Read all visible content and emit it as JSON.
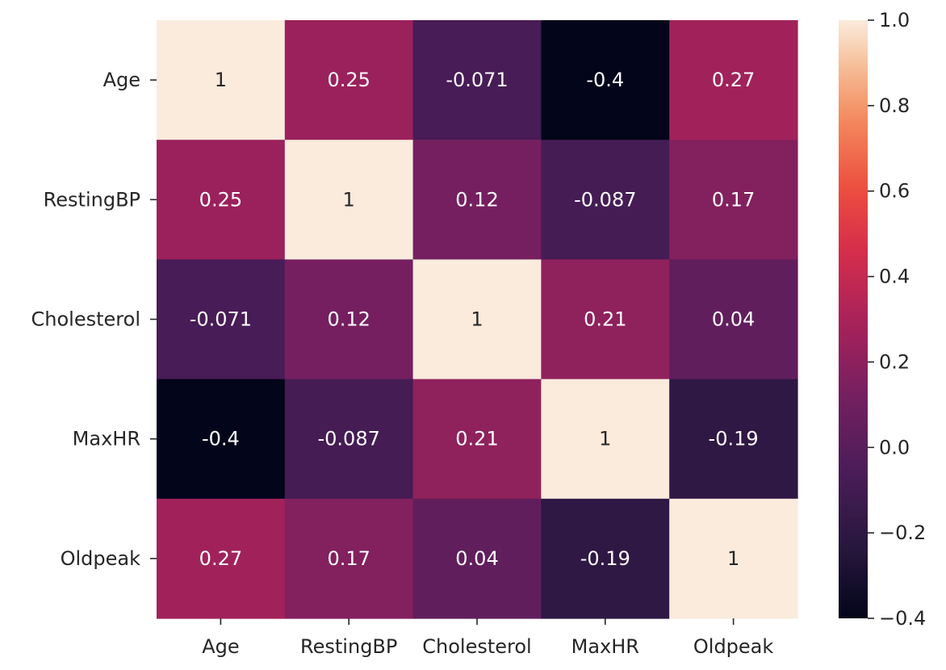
{
  "chart_data": {
    "type": "heatmap",
    "title": "",
    "xlabel": "",
    "ylabel": "",
    "x_categories": [
      "Age",
      "RestingBP",
      "Cholesterol",
      "MaxHR",
      "Oldpeak"
    ],
    "y_categories": [
      "Age",
      "RestingBP",
      "Cholesterol",
      "MaxHR",
      "Oldpeak"
    ],
    "values": [
      [
        1,
        0.25,
        -0.071,
        -0.4,
        0.27
      ],
      [
        0.25,
        1,
        0.12,
        -0.087,
        0.17
      ],
      [
        -0.071,
        0.12,
        1,
        0.21,
        0.04
      ],
      [
        -0.4,
        -0.087,
        0.21,
        1,
        -0.19
      ],
      [
        0.27,
        0.17,
        0.04,
        -0.19,
        1
      ]
    ],
    "annotations": [
      [
        "1",
        "0.25",
        "-0.071",
        "-0.4",
        "0.27"
      ],
      [
        "0.25",
        "1",
        "0.12",
        "-0.087",
        "0.17"
      ],
      [
        "-0.071",
        "0.12",
        "1",
        "0.21",
        "0.04"
      ],
      [
        "-0.4",
        "-0.087",
        "0.21",
        "1",
        "-0.19"
      ],
      [
        "0.27",
        "0.17",
        "0.04",
        "-0.19",
        "1"
      ]
    ],
    "colorbar": {
      "vmin": -0.4,
      "vmax": 1.0,
      "ticks": [
        1.0,
        0.8,
        0.6,
        0.4,
        0.2,
        0.0,
        -0.2,
        -0.4
      ],
      "tick_labels": [
        "1.0",
        "0.8",
        "0.6",
        "0.4",
        "0.2",
        "0.0",
        "−0.2",
        "−0.4"
      ]
    },
    "colormap": "rocket",
    "grid": false,
    "legend": "colorbar-right"
  }
}
